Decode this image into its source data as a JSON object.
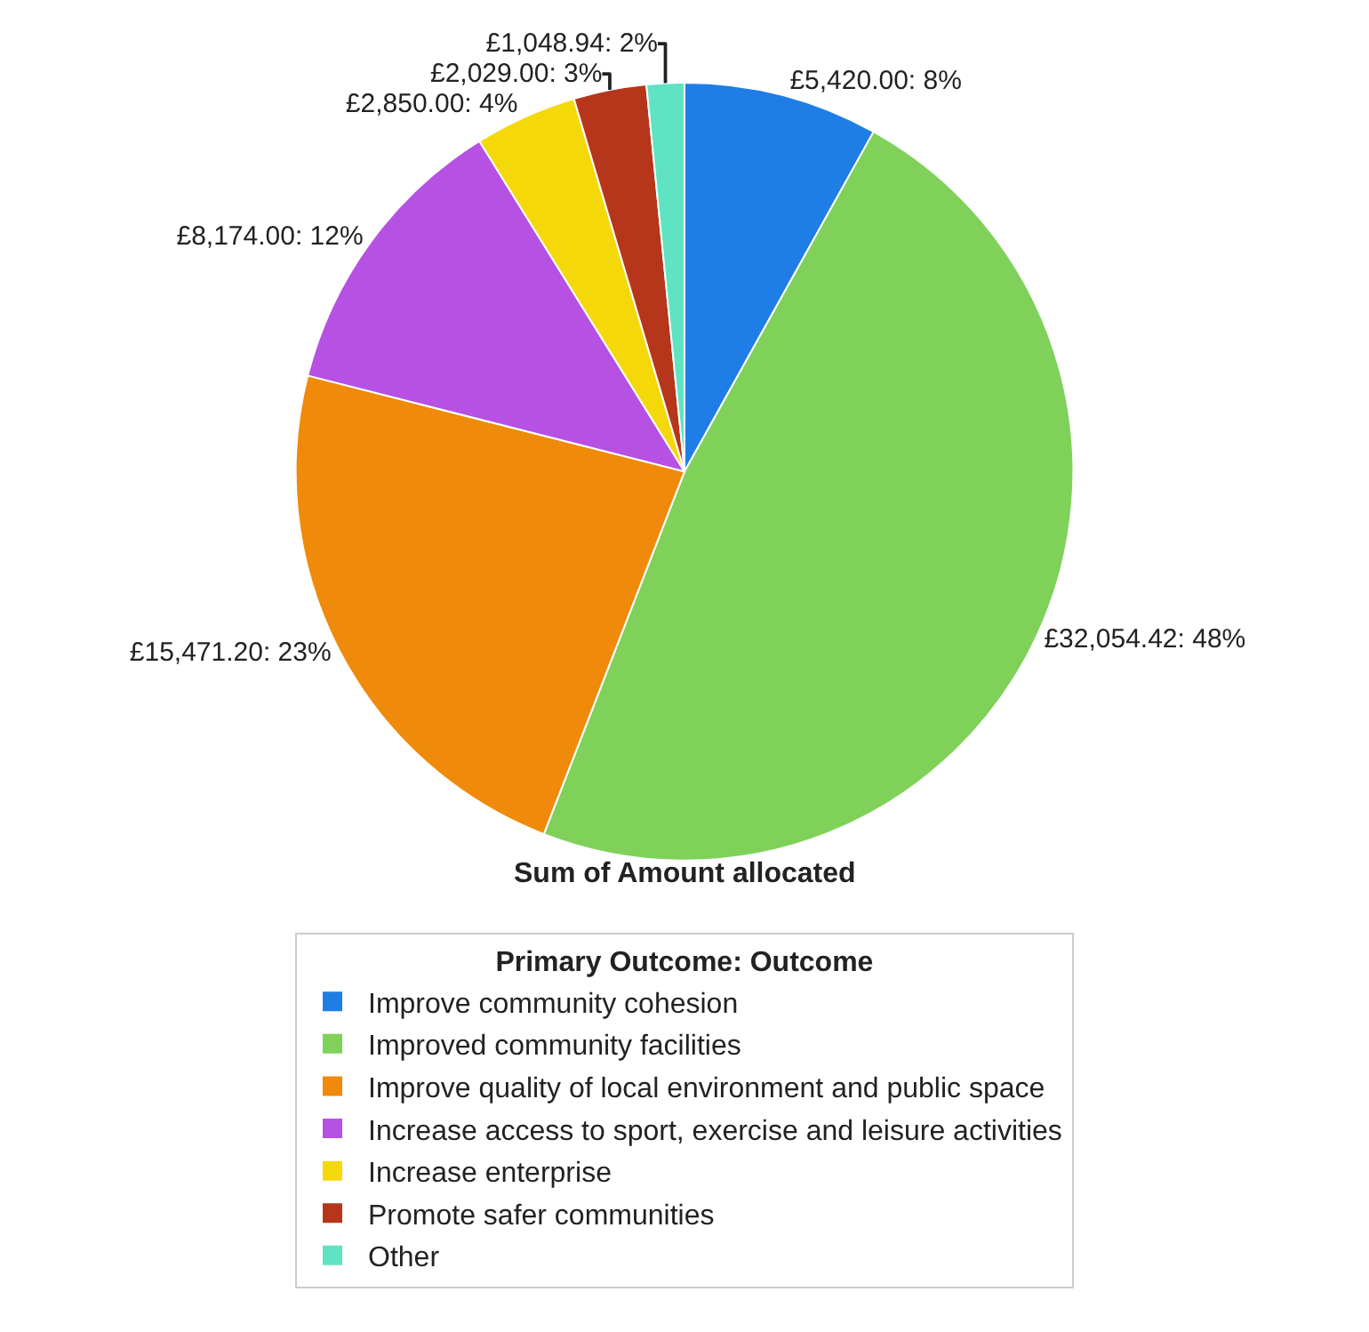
{
  "chart_data": {
    "type": "pie",
    "title": "Sum of Amount allocated",
    "legend_title": "Primary Outcome: Outcome",
    "legend": "bottom",
    "categories": [
      "Improve community cohesion",
      "Improved community facilities",
      "Improve quality of local environment and public space",
      "Increase access to sport, exercise and leisure activities",
      "Increase enterprise",
      "Promote safer communities",
      "Other"
    ],
    "values": [
      5420.0,
      32054.42,
      15471.2,
      8174.0,
      2850.0,
      2029.0,
      1048.94
    ],
    "value_labels": [
      "£5,420.00: 8%",
      "£32,054.42: 48%",
      "£15,471.20: 23%",
      "£8,174.00: 12%",
      "£2,850.00: 4%",
      "£2,029.00: 3%",
      "£1,048.94: 2%"
    ],
    "colors": [
      "#1f7ee6",
      "#7fd15a",
      "#f08a0a",
      "#b651e3",
      "#f5d80a",
      "#b5361a",
      "#5fe3c3"
    ]
  }
}
